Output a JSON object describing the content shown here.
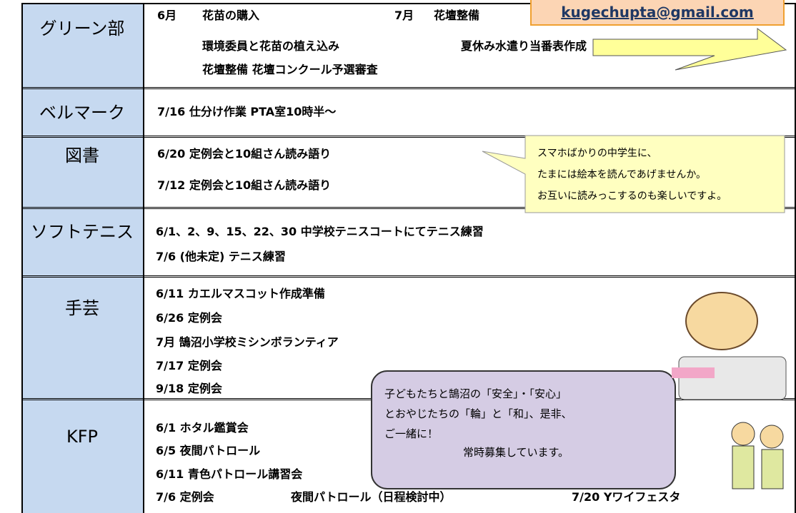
{
  "email": "kugechupta@gmail.com",
  "rows": [
    {
      "label": "グリーン部",
      "lines": [
        [
          "6月",
          "花苗の購入",
          "7月",
          "花壇整備"
        ],
        [
          "環境委員と花苗の植え込み",
          "夏休み水遣り当番表作成"
        ],
        [
          "花壇整備 花壇コンクール予選審査"
        ]
      ]
    },
    {
      "label": "ベルマーク",
      "lines": [
        [
          "7/16 仕分け作業 PTA室10時半～"
        ]
      ]
    },
    {
      "label": "図書",
      "lines": [
        [
          "6/20 定例会と10組さん読み語り"
        ],
        [
          "7/12 定例会と10組さん読み語り"
        ]
      ]
    },
    {
      "label": "ソフトテニス",
      "lines": [
        [
          "6/1、2、9、15、22、30 中学校テニスコートにてテニス練習"
        ],
        [
          "7/6 (他未定) テニス練習"
        ]
      ]
    },
    {
      "label": "手芸",
      "lines": [
        [
          "6/11 カエルマスコット作成準備"
        ],
        [
          "6/26 定例会"
        ],
        [
          "7月 鵠沼小学校ミシンボランティア"
        ],
        [
          "7/17 定例会"
        ],
        [
          "9/18 定例会"
        ]
      ]
    },
    {
      "label": "KFP",
      "lines": [
        [
          "6/1 ホタル鑑賞会"
        ],
        [
          "6/5 夜間パトロール"
        ],
        [
          "6/11 青色パトロール講習会"
        ],
        [
          "7/6 定例会",
          "夜間パトロール（日程検討中）",
          "7/20 Yワイフェスタ"
        ]
      ]
    }
  ],
  "callout": [
    "スマホばかりの中学生に、",
    "たまには絵本を読んであげませんか。",
    "お互いに読みっこするのも楽しいですよ。"
  ],
  "notice": [
    "子どもたちと鵠沼の「安全」・「安心」",
    "とおやじたちの「輪」と「和」、是非、",
    "ご一緒に！",
    "常時募集しています。"
  ]
}
